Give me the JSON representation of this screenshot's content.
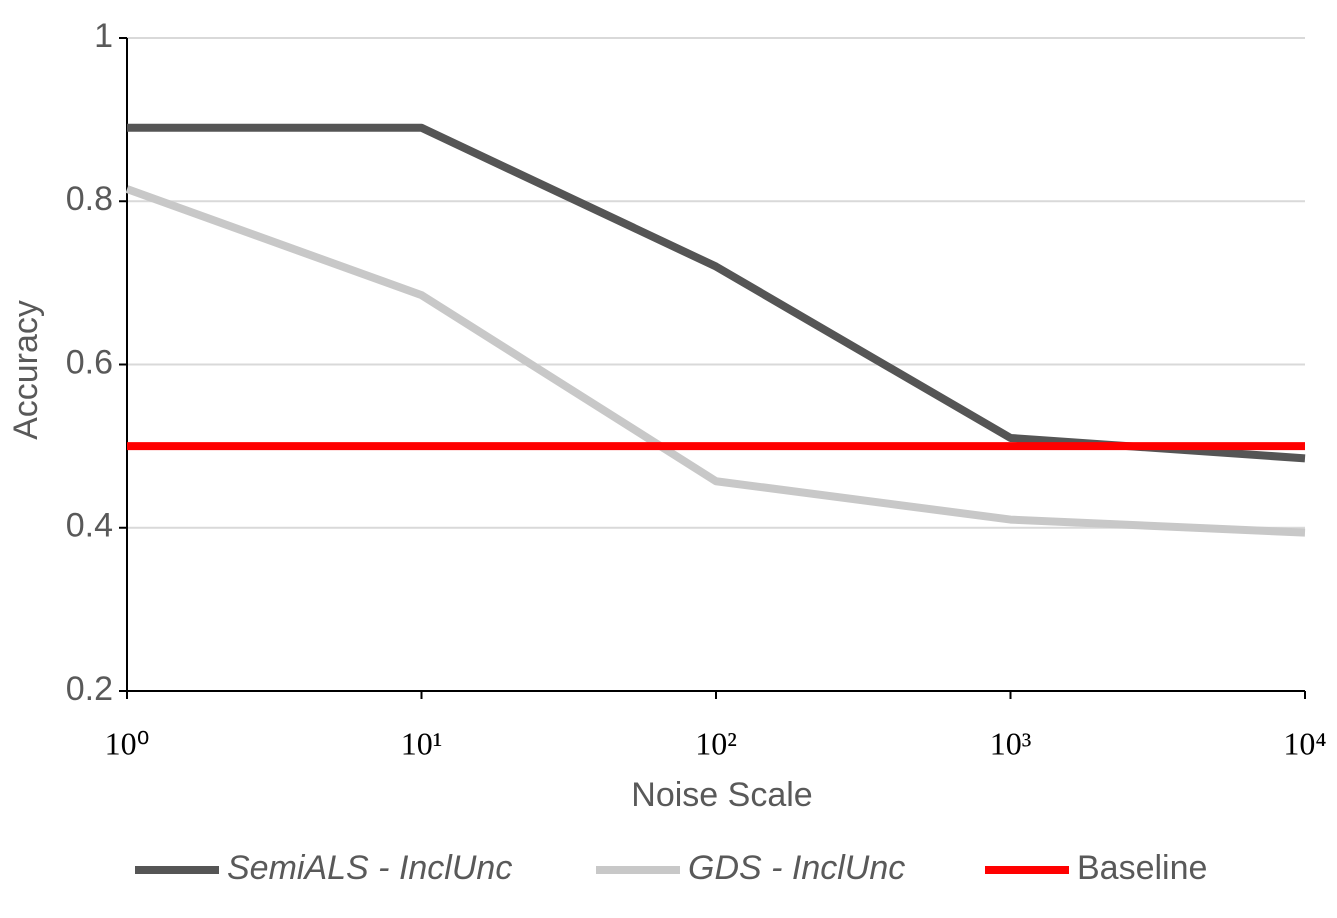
{
  "chart_data": {
    "type": "line",
    "x_label": "Noise Scale",
    "y_label": "Accuracy",
    "x": [
      1,
      10,
      100,
      1000,
      10000
    ],
    "x_log": true,
    "xlim": [
      1,
      10000
    ],
    "xticks": [
      {
        "value": 1,
        "label": "10⁰"
      },
      {
        "value": 10,
        "label": "10¹"
      },
      {
        "value": 100,
        "label": "10²"
      },
      {
        "value": 1000,
        "label": "10³"
      },
      {
        "value": 10000,
        "label": "10⁴"
      }
    ],
    "ylim": [
      0.2,
      1
    ],
    "yticks": [
      0.2,
      0.4,
      0.6,
      0.8,
      1
    ],
    "grid": true,
    "legend": "bottom",
    "series": [
      {
        "name": "SemiALS - InclUnc",
        "color": "#555555",
        "font_style": "italic",
        "values": [
          0.89,
          0.89,
          0.72,
          0.51,
          0.485
        ]
      },
      {
        "name": "GDS - InclUnc",
        "color": "#c8c8c8",
        "font_style": "italic",
        "values": [
          0.815,
          0.685,
          0.457,
          0.41,
          0.394
        ]
      },
      {
        "name": "Baseline",
        "color": "#ff0000",
        "font_style": "normal",
        "values": [
          0.5,
          0.5,
          0.5,
          0.5,
          0.5
        ]
      }
    ]
  }
}
